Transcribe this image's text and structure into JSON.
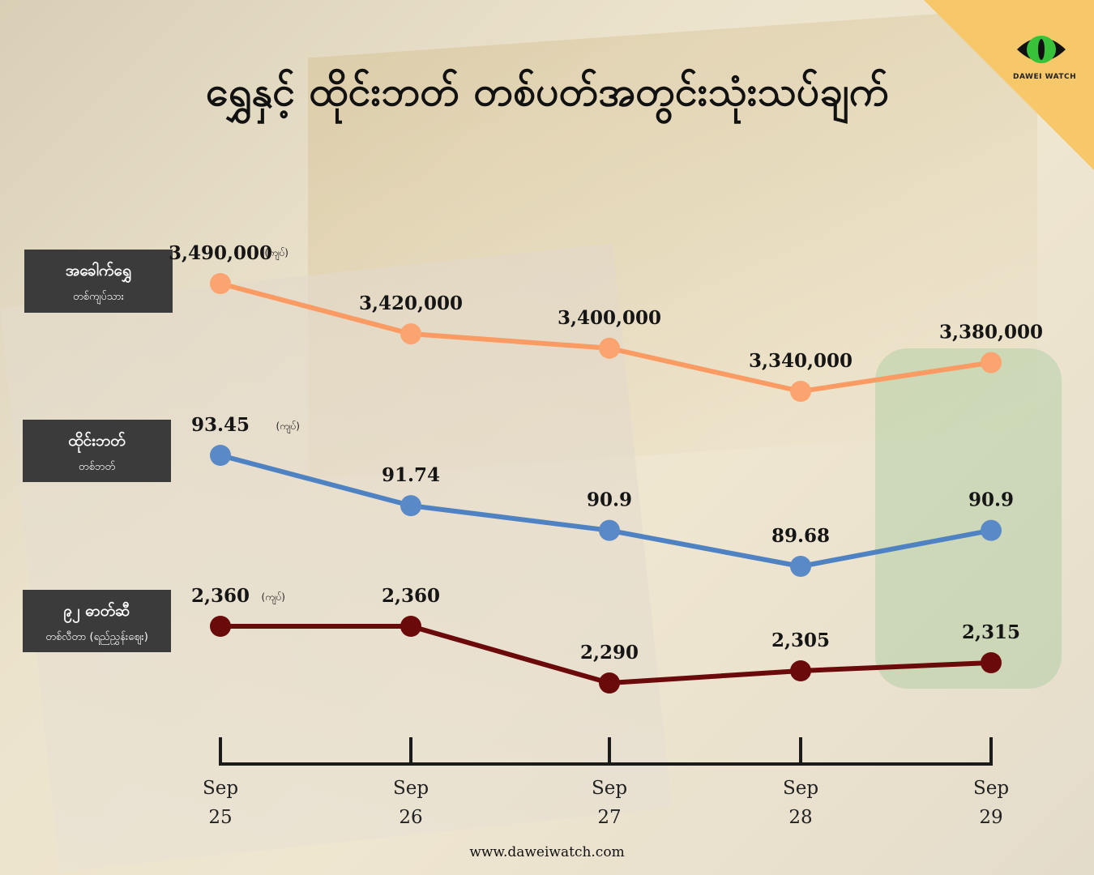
{
  "title": "ရွှေနှင့် ထိုင်းဘတ် တစ်ပတ်အတွင်းသုံးသပ်ချက်",
  "brand": {
    "name": "DAWEI WATCH",
    "website": "www.daweiwatch.com",
    "accent": "#f6c86a",
    "eye_color": "#38c23a"
  },
  "labels": [
    {
      "main": "အခေါက်ရွှေ",
      "sub": "တစ်ကျပ်သား"
    },
    {
      "main": "ထိုင်းဘတ်",
      "sub": "တစ်ဘတ်"
    },
    {
      "main": "၉၂ ဓာတ်ဆီ",
      "sub": "တစ်လီတာ (ရည်ညွှန်းဈေး)"
    }
  ],
  "chart_data": {
    "type": "line",
    "categories": [
      "Sep 25",
      "Sep 26",
      "Sep 27",
      "Sep 28",
      "Sep 29"
    ],
    "x_ticks": [
      {
        "month": "Sep",
        "day": "25"
      },
      {
        "month": "Sep",
        "day": "26"
      },
      {
        "month": "Sep",
        "day": "27"
      },
      {
        "month": "Sep",
        "day": "28"
      },
      {
        "month": "Sep",
        "day": "29"
      }
    ],
    "unit_label": "(ကျပ်)",
    "series": [
      {
        "color": "#f99b63",
        "marker": "#fba470",
        "values": [
          3490000,
          3420000,
          3400000,
          3340000,
          3380000
        ],
        "labels": [
          "3,490,000",
          "3,420,000",
          "3,400,000",
          "3,340,000",
          "3,380,000"
        ]
      },
      {
        "color": "#4f82c3",
        "marker": "#5a89c8",
        "values": [
          93.45,
          91.74,
          90.9,
          89.68,
          90.9
        ],
        "labels": [
          "93.45",
          "91.74",
          "90.9",
          "89.68",
          "90.9"
        ]
      },
      {
        "color": "#6b0a0a",
        "marker": "#6b0a0a",
        "values": [
          2360,
          2360,
          2290,
          2305,
          2315
        ],
        "labels": [
          "2,360",
          "2,360",
          "2,290",
          "2,305",
          "2,315"
        ]
      }
    ]
  }
}
